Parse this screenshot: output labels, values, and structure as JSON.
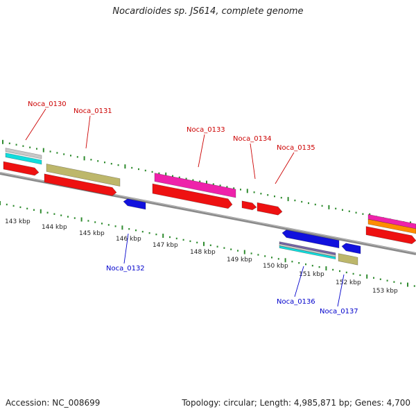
{
  "title": "Nocardioides sp. JS614, complete genome",
  "footer": {
    "accession": "Accession: NC_008699",
    "summary": "Topology: circular; Length: 4,985,871 bp; Genes: 4,700"
  },
  "colors": {
    "backbone": "#8a8a8a",
    "tick": "#2e8b2e",
    "label_forward": "#cc0000",
    "label_reverse": "#0000cc",
    "red": "#ee1111",
    "magenta": "#ee22aa",
    "khaki": "#bdb76b",
    "cyan": "#11dddd",
    "silver": "#c8c8c8",
    "orange": "#ff8c00",
    "blue": "#1111dd",
    "purple": "#7766aa"
  },
  "scale_labels": [
    "143 kbp",
    "144 kbp",
    "145 kbp",
    "146 kbp",
    "147 kbp",
    "148 kbp",
    "149 kbp",
    "150 kbp",
    "151 kbp",
    "152 kbp",
    "153 kbp"
  ],
  "gene_labels": {
    "forward": [
      "Noca_0130",
      "Noca_0131",
      "Noca_0133",
      "Noca_0134",
      "Noca_0135"
    ],
    "reverse": [
      "Noca_0132",
      "Noca_0136",
      "Noca_0137"
    ]
  }
}
